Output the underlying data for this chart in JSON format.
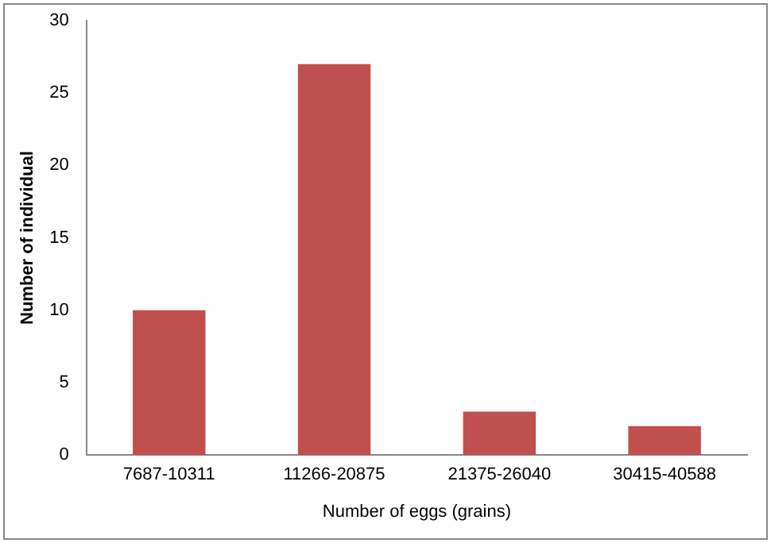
{
  "chart_data": {
    "type": "bar",
    "xlabel": "Number of eggs (grains)",
    "ylabel": "Number of individual",
    "categories": [
      "7687-10311",
      "11266-20875",
      "21375-26040",
      "30415-40588"
    ],
    "values": [
      10,
      27,
      3,
      2
    ],
    "color": "#c0504d",
    "ylim": [
      0,
      30
    ],
    "yticks": [
      0,
      5,
      10,
      15,
      20,
      25,
      30
    ],
    "grid": false,
    "legend": false
  }
}
